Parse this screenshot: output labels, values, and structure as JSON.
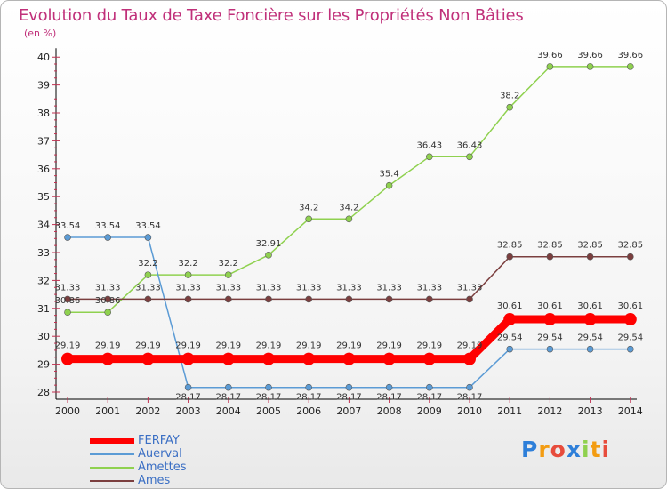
{
  "chart_data": {
    "type": "line",
    "title": "Evolution du Taux de Taxe Foncière sur les Propriétés Non Bâties",
    "unit_label": "(en %)",
    "xlabel": "",
    "ylabel": "",
    "x": [
      "2000",
      "2001",
      "2002",
      "2003",
      "2004",
      "2005",
      "2006",
      "2007",
      "2008",
      "2009",
      "2010",
      "2011",
      "2012",
      "2013",
      "2014"
    ],
    "ylim": [
      28,
      40
    ],
    "yticks": [
      28,
      29,
      30,
      31,
      32,
      33,
      34,
      35,
      36,
      37,
      38,
      39,
      40
    ],
    "grid": false,
    "series": [
      {
        "name": "FERFAY",
        "color": "#ff0000",
        "values": [
          29.19,
          29.19,
          29.19,
          29.19,
          29.19,
          29.19,
          29.19,
          29.19,
          29.19,
          29.19,
          29.19,
          30.61,
          30.61,
          30.61,
          30.61
        ],
        "labels": [
          "29.19",
          "29.19",
          "29.19",
          "29.19",
          "29.19",
          "29.19",
          "29.19",
          "29.19",
          "29.19",
          "29.19",
          "29.19",
          "30.61",
          "30.61",
          "30.61",
          "30.61"
        ]
      },
      {
        "name": "Auerval",
        "color": "#5b9bd5",
        "values": [
          33.54,
          33.54,
          33.54,
          28.17,
          28.17,
          28.17,
          28.17,
          28.17,
          28.17,
          28.17,
          28.17,
          29.54,
          29.54,
          29.54,
          29.54
        ],
        "labels": [
          "33.54",
          "33.54",
          "33.54",
          "28.17",
          "28.17",
          "28.17",
          "28.17",
          "28.17",
          "28.17",
          "28.17",
          "28.17",
          "29.54",
          "29.54",
          "29.54",
          "29.54"
        ]
      },
      {
        "name": "Amettes",
        "color": "#8fd14f",
        "values": [
          30.86,
          30.86,
          32.2,
          32.2,
          32.2,
          32.91,
          34.2,
          34.2,
          35.4,
          36.43,
          36.43,
          38.2,
          39.66,
          39.66,
          39.66
        ],
        "labels": [
          "30.86",
          "30.86",
          "32.2",
          "32.2",
          "32.2",
          "32.91",
          "34.2",
          "34.2",
          "35.4",
          "36.43",
          "36.43",
          "38.2",
          "39.66",
          "39.66",
          "39.66"
        ]
      },
      {
        "name": "Ames",
        "color": "#7b3f3f",
        "values": [
          31.33,
          31.33,
          31.33,
          31.33,
          31.33,
          31.33,
          31.33,
          31.33,
          31.33,
          31.33,
          31.33,
          32.85,
          32.85,
          32.85,
          32.85
        ],
        "labels": [
          "31.33",
          "31.33",
          "31.33",
          "31.33",
          "31.33",
          "31.33",
          "31.33",
          "31.33",
          "31.33",
          "31.33",
          "31.33",
          "32.85",
          "32.85",
          "32.85",
          "32.85"
        ]
      }
    ],
    "legend": [
      "FERFAY",
      "Auerval",
      "Amettes",
      "Ames"
    ],
    "legend_position": "bottom-left"
  },
  "logo": {
    "letters": [
      "P",
      "r",
      "o",
      "x",
      "i",
      "t",
      "i"
    ],
    "colors": [
      "#2e7fd9",
      "#f39c12",
      "#e74c3c",
      "#2e7fd9",
      "#8fd14f",
      "#f39c12",
      "#e74c3c"
    ]
  }
}
